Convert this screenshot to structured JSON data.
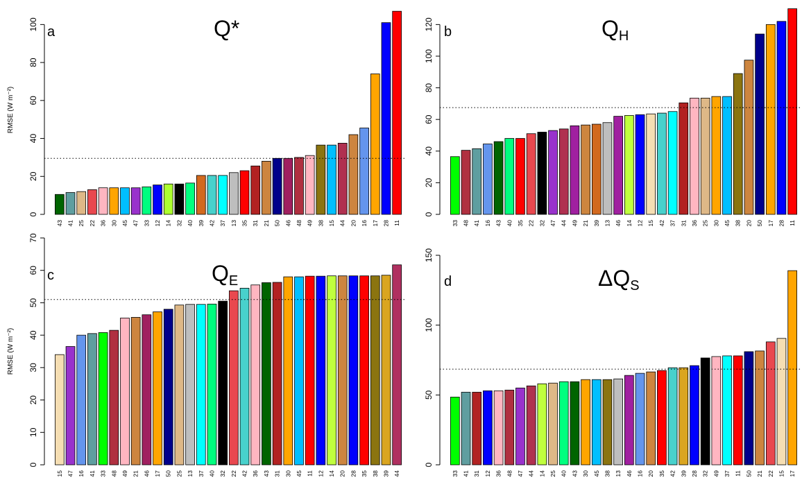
{
  "chart_data": [
    {
      "type": "bar",
      "panel_letter": "a",
      "title": "Q",
      "title_sub": "",
      "title_sup": "*",
      "title_prefix": "",
      "ylabel": "RMSE (W m⁻²)",
      "ylim": [
        0,
        110
      ],
      "yticks": [
        0,
        20,
        40,
        60,
        80,
        100
      ],
      "reference_line": 29.5,
      "categories": [
        "43",
        "41",
        "25",
        "22",
        "36",
        "30",
        "45",
        "47",
        "33",
        "12",
        "14",
        "32",
        "40",
        "39",
        "42",
        "37",
        "13",
        "35",
        "31",
        "21",
        "50",
        "46",
        "48",
        "49",
        "38",
        "15",
        "44",
        "20",
        "16",
        "17",
        "28",
        "11"
      ],
      "values": [
        10.5,
        11.5,
        12,
        13,
        14,
        14,
        14,
        14,
        14.5,
        15.5,
        16,
        16,
        16.5,
        20.5,
        20.5,
        20.5,
        22,
        23,
        25.5,
        28,
        29.5,
        29.5,
        30,
        31,
        36.5,
        36.5,
        37.5,
        42,
        45.5,
        74,
        101,
        107
      ],
      "colors": [
        "#006400",
        "#5f9ea0",
        "#deb887",
        "#e9484f",
        "#ffb6c1",
        "#ffa500",
        "#00bfff",
        "#9932cc",
        "#00ff7f",
        "#0000ff",
        "#adff2f",
        "#000000",
        "#00ff7f",
        "#d2691e",
        "#48d1cc",
        "#00ffff",
        "#bebebe",
        "#ff0000",
        "#b22222",
        "#cd853f",
        "#00008b",
        "#a02060",
        "#b03040",
        "#ffb6c1",
        "#8b7410",
        "#00bfff",
        "#b03050",
        "#cd853f",
        "#6495ed",
        "#ffa500",
        "#0000ff",
        "#ff0000"
      ]
    },
    {
      "type": "bar",
      "panel_letter": "b",
      "title": "Q",
      "title_sub": "H",
      "title_sup": "",
      "title_prefix": "",
      "ylabel": "",
      "ylim": [
        0,
        132
      ],
      "yticks": [
        0,
        20,
        40,
        60,
        80,
        100,
        120
      ],
      "reference_line": 67.5,
      "categories": [
        "33",
        "48",
        "41",
        "16",
        "43",
        "40",
        "35",
        "22",
        "32",
        "47",
        "44",
        "49",
        "21",
        "39",
        "13",
        "46",
        "14",
        "12",
        "15",
        "42",
        "37",
        "31",
        "36",
        "25",
        "30",
        "45",
        "38",
        "20",
        "50",
        "17",
        "28",
        "11"
      ],
      "values": [
        36.5,
        40.5,
        41.5,
        44.5,
        46,
        48,
        48,
        51,
        52,
        53,
        54,
        56,
        56.5,
        57,
        58,
        62,
        62.5,
        63,
        63.5,
        64,
        65,
        70.5,
        73.5,
        73.5,
        74.5,
        74.5,
        89,
        97.5,
        114,
        120,
        122,
        130
      ],
      "colors": [
        "#00ff00",
        "#b03040",
        "#5f9ea0",
        "#6495ed",
        "#006400",
        "#00ff7f",
        "#ff0000",
        "#e9484f",
        "#000000",
        "#9932cc",
        "#b03050",
        "#a020a0",
        "#cd853f",
        "#d2691e",
        "#bebebe",
        "#a020a0",
        "#c0ff3e",
        "#0000ff",
        "#f5deb3",
        "#48d1cc",
        "#00ffff",
        "#b22222",
        "#ffb6c1",
        "#deb887",
        "#ffa500",
        "#00bfff",
        "#8b7410",
        "#cd853f",
        "#00008b",
        "#ffa500",
        "#0000ff",
        "#ff0000"
      ]
    },
    {
      "type": "bar",
      "panel_letter": "c",
      "title": "Q",
      "title_sub": "E",
      "title_sup": "",
      "title_prefix": "",
      "ylabel": "RMSE (W m⁻²)",
      "ylim": [
        0,
        70
      ],
      "yticks": [
        0,
        10,
        20,
        30,
        40,
        50,
        60,
        70
      ],
      "reference_line": 51,
      "categories": [
        "15",
        "47",
        "16",
        "41",
        "33",
        "48",
        "49",
        "21",
        "46",
        "17",
        "50",
        "25",
        "13",
        "37",
        "40",
        "32",
        "22",
        "42",
        "36",
        "43",
        "31",
        "30",
        "45",
        "11",
        "12",
        "14",
        "20",
        "28",
        "35",
        "38",
        "39",
        "44"
      ],
      "values": [
        34,
        36.5,
        40,
        40.5,
        40.8,
        41.5,
        45.3,
        45.5,
        46.3,
        47.2,
        48,
        49.3,
        49.5,
        49.5,
        49.6,
        50.5,
        53.7,
        54.5,
        55.5,
        56.2,
        56.3,
        58,
        58,
        58.2,
        58.2,
        58.3,
        58.3,
        58.3,
        58.3,
        58.3,
        58.5,
        61.7
      ],
      "colors": [
        "#f5deb3",
        "#9932cc",
        "#6495ed",
        "#5f9ea0",
        "#00ff00",
        "#b03040",
        "#ffb6c1",
        "#cd853f",
        "#a02060",
        "#ffa500",
        "#00008b",
        "#deb887",
        "#bebebe",
        "#00ffff",
        "#00ff7f",
        "#000000",
        "#e9484f",
        "#48d1cc",
        "#ffb6c1",
        "#006400",
        "#b22222",
        "#ffa500",
        "#00bfff",
        "#ff0000",
        "#0000ff",
        "#c0ff3e",
        "#cd853f",
        "#0000ff",
        "#ff0000",
        "#8b7410",
        "#daa520",
        "#b03060"
      ]
    },
    {
      "type": "bar",
      "panel_letter": "d",
      "title": "Q",
      "title_sub": "S",
      "title_sup": "",
      "title_prefix": "Δ",
      "ylabel": "",
      "ylim": [
        0,
        150
      ],
      "yticks": [
        0,
        50,
        100,
        150
      ],
      "reference_line": 68.5,
      "categories": [
        "33",
        "41",
        "31",
        "12",
        "36",
        "48",
        "47",
        "44",
        "14",
        "25",
        "40",
        "43",
        "30",
        "45",
        "38",
        "13",
        "46",
        "16",
        "20",
        "35",
        "42",
        "39",
        "28",
        "32",
        "49",
        "37",
        "11",
        "50",
        "21",
        "22",
        "15",
        "17"
      ],
      "values": [
        48.5,
        52,
        52,
        53,
        53,
        53.5,
        55,
        56.5,
        58,
        58.5,
        59.5,
        59.5,
        61,
        61,
        61,
        61.5,
        64,
        65.5,
        66.5,
        67.5,
        69.5,
        69.5,
        71,
        76.5,
        77.5,
        78,
        78,
        81,
        81.5,
        88,
        90.5,
        139
      ],
      "colors": [
        "#00ff00",
        "#5f9ea0",
        "#b22222",
        "#0000ff",
        "#ffb6c1",
        "#b03040",
        "#9932cc",
        "#b03050",
        "#c0ff3e",
        "#deb887",
        "#00ff7f",
        "#006400",
        "#ffa500",
        "#00bfff",
        "#8b7410",
        "#bebebe",
        "#a020a0",
        "#6495ed",
        "#cd853f",
        "#ff0000",
        "#48d1cc",
        "#daa520",
        "#0000ff",
        "#000000",
        "#ffb6c1",
        "#00ffff",
        "#ff0000",
        "#00008b",
        "#cd853f",
        "#e9484f",
        "#f5deb3",
        "#ffa500"
      ]
    }
  ]
}
